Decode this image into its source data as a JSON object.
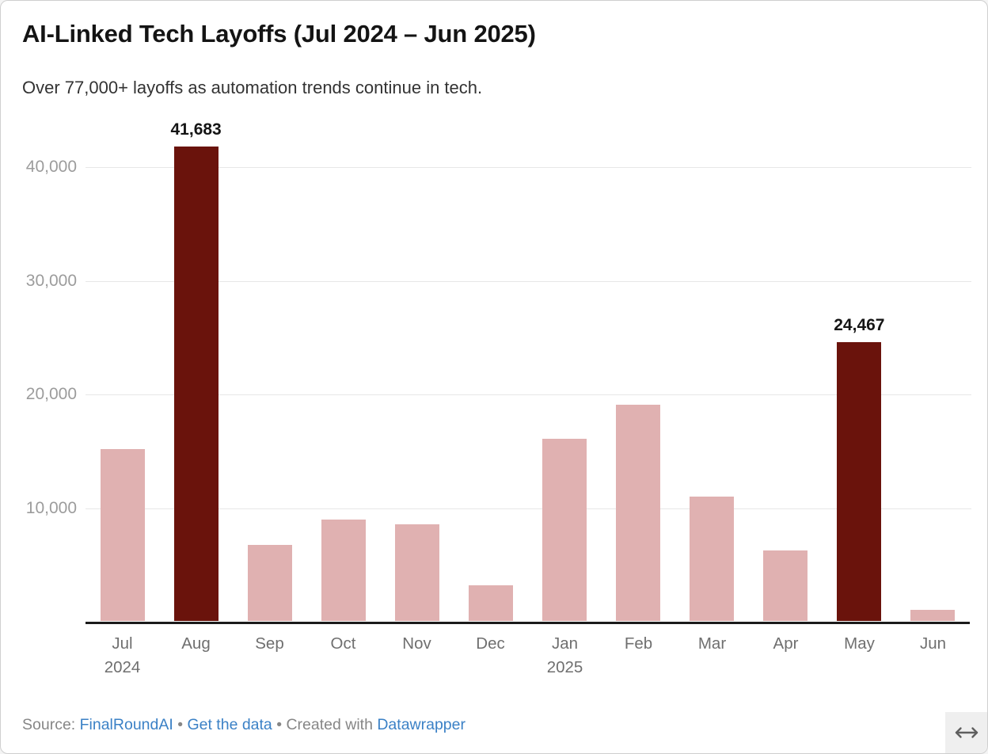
{
  "header": {
    "title": "AI-Linked Tech Layoffs (Jul 2024 – Jun 2025)",
    "subtitle": "Over 77,000+ layoffs as automation trends continue in tech."
  },
  "chart_data": {
    "type": "bar",
    "title": "AI-Linked Tech Layoffs (Jul 2024 – Jun 2025)",
    "subtitle": "Over 77,000+ layoffs as automation trends continue in tech.",
    "categories": [
      "Jul",
      "Aug",
      "Sep",
      "Oct",
      "Nov",
      "Dec",
      "Jan",
      "Feb",
      "Mar",
      "Apr",
      "May",
      "Jun"
    ],
    "year_marks": {
      "0": "2024",
      "6": "2025"
    },
    "values": [
      15100,
      41683,
      6700,
      8900,
      8500,
      3100,
      16000,
      19000,
      10900,
      6200,
      24467,
      1000
    ],
    "highlighted_indices": [
      1,
      10
    ],
    "data_labels": {
      "1": "41,683",
      "10": "24,467"
    },
    "yticks": [
      10000,
      20000,
      30000,
      40000
    ],
    "ytick_labels": [
      "10,000",
      "20,000",
      "30,000",
      "40,000"
    ],
    "ylim": [
      0,
      44500
    ],
    "xlabel": "",
    "ylabel": "",
    "grid": "horizontal-only",
    "legend": "none",
    "colors": {
      "bar": "#e0b1b1",
      "highlight": "#6a130c"
    }
  },
  "footer": {
    "source_label": "Source:",
    "source_link": "FinalRoundAI",
    "separator1": "•",
    "data_link": "Get the data",
    "separator2": "•",
    "created_with": "Created with",
    "tool_link": "Datawrapper"
  },
  "colors": {
    "link": "#3b81c6",
    "footer_text": "#868686",
    "baseline": "#1a1a1a",
    "gridline": "#e7e7e7",
    "y_tick_text": "#9c9c9c",
    "x_tick_text": "#6f6f6f"
  }
}
